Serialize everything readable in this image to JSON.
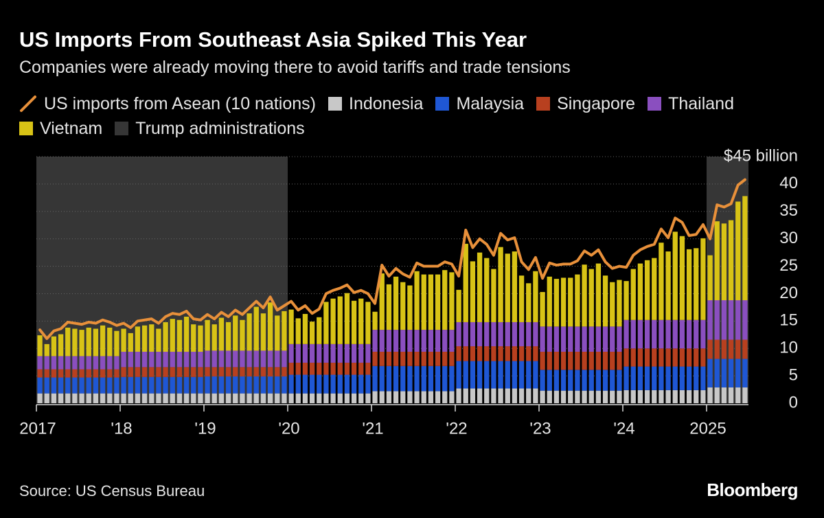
{
  "chart_data": {
    "type": "bar",
    "stacked": true,
    "title": "US Imports From Southeast Asia Spiked This Year",
    "subtitle": "Companies were already moving there to avoid tariffs and trade tensions",
    "source": "Source: US Census Bureau",
    "credit": "Bloomberg",
    "categories": [
      "2017",
      null,
      null,
      null,
      null,
      null,
      null,
      null,
      null,
      null,
      null,
      null,
      "'18",
      null,
      null,
      null,
      null,
      null,
      null,
      null,
      null,
      null,
      null,
      null,
      "'19",
      null,
      null,
      null,
      null,
      null,
      null,
      null,
      null,
      null,
      null,
      null,
      "'20",
      null,
      null,
      null,
      null,
      null,
      null,
      null,
      null,
      null,
      null,
      null,
      "'21",
      null,
      null,
      null,
      null,
      null,
      null,
      null,
      null,
      null,
      null,
      null,
      "'22",
      null,
      null,
      null,
      null,
      null,
      null,
      null,
      null,
      null,
      null,
      null,
      "'23",
      null,
      null,
      null,
      null,
      null,
      null,
      null,
      null,
      null,
      null,
      null,
      "'24",
      null,
      null,
      null,
      null,
      null,
      null,
      null,
      null,
      null,
      null,
      null,
      "2025",
      null,
      null,
      null,
      null,
      null
    ],
    "series": [
      {
        "name": "US imports from Asean (10 nations)",
        "type": "line",
        "color": "#e8903a",
        "values": [
          13.4,
          11.8,
          13.2,
          13.6,
          14.8,
          14.6,
          14.4,
          14.8,
          14.6,
          15.2,
          14.8,
          14.2,
          14.6,
          13.8,
          15.0,
          15.2,
          15.4,
          14.6,
          15.8,
          16.4,
          16.2,
          16.8,
          15.4,
          15.2,
          16.2,
          15.4,
          16.6,
          15.8,
          17.0,
          16.2,
          17.4,
          18.6,
          17.4,
          19.4,
          17.0,
          17.8,
          18.6,
          17.0,
          17.8,
          16.4,
          17.2,
          20.0,
          20.6,
          21.0,
          21.6,
          20.2,
          20.6,
          20.0,
          18.2,
          25.2,
          23.2,
          24.6,
          23.6,
          23.0,
          25.6,
          25.0,
          25.0,
          25.0,
          25.8,
          25.4,
          23.2,
          31.6,
          28.4,
          30.0,
          29.0,
          27.0,
          31.0,
          29.8,
          30.2,
          25.8,
          24.4,
          26.6,
          22.8,
          25.6,
          25.2,
          25.4,
          25.4,
          26.0,
          27.8,
          27.0,
          28.0,
          25.8,
          24.6,
          25.0,
          24.8,
          27.0,
          28.0,
          28.6,
          29.0,
          31.8,
          30.2,
          33.8,
          33.0,
          30.6,
          30.8,
          32.6,
          30.0,
          36.2,
          35.8,
          36.4,
          39.8,
          40.8
        ]
      },
      {
        "name": "Indonesia",
        "color": "#c8c8c8",
        "values": [
          1.8,
          1.8,
          1.8,
          1.8,
          1.8,
          1.8,
          1.8,
          1.8,
          1.8,
          1.8,
          1.8,
          1.8,
          1.8,
          1.8,
          1.8,
          1.8,
          1.8,
          1.8,
          1.8,
          1.8,
          1.8,
          1.8,
          1.8,
          1.8,
          1.8,
          1.8,
          1.8,
          1.8,
          1.8,
          1.8,
          1.8,
          1.8,
          1.8,
          1.8,
          1.8,
          1.8,
          1.8,
          1.8,
          1.8,
          1.8,
          1.8,
          1.8,
          1.8,
          1.8,
          1.8,
          1.8,
          1.8,
          1.8,
          2.2,
          2.2,
          2.2,
          2.2,
          2.2,
          2.2,
          2.2,
          2.2,
          2.2,
          2.2,
          2.2,
          2.2,
          2.7,
          2.7,
          2.7,
          2.7,
          2.7,
          2.7,
          2.7,
          2.7,
          2.7,
          2.7,
          2.7,
          2.7,
          2.3,
          2.3,
          2.3,
          2.3,
          2.3,
          2.3,
          2.3,
          2.3,
          2.3,
          2.3,
          2.3,
          2.3,
          2.4,
          2.4,
          2.4,
          2.4,
          2.4,
          2.4,
          2.4,
          2.4,
          2.4,
          2.4,
          2.4,
          2.4,
          2.9,
          2.9,
          2.9,
          2.9,
          2.9,
          2.9
        ]
      },
      {
        "name": "Malaysia",
        "color": "#1f57d4",
        "values": [
          2.9,
          2.9,
          2.9,
          2.9,
          2.9,
          2.9,
          2.9,
          2.9,
          2.9,
          2.9,
          2.9,
          2.9,
          3.0,
          3.0,
          3.0,
          3.0,
          3.0,
          3.0,
          3.0,
          3.0,
          3.0,
          3.0,
          3.0,
          3.0,
          3.1,
          3.1,
          3.1,
          3.1,
          3.1,
          3.1,
          3.1,
          3.1,
          3.1,
          3.1,
          3.1,
          3.1,
          3.4,
          3.4,
          3.4,
          3.4,
          3.4,
          3.4,
          3.4,
          3.4,
          3.4,
          3.4,
          3.4,
          3.4,
          4.6,
          4.6,
          4.6,
          4.6,
          4.6,
          4.6,
          4.6,
          4.6,
          4.6,
          4.6,
          4.6,
          4.6,
          5.0,
          5.0,
          5.0,
          5.0,
          5.0,
          5.0,
          5.0,
          5.0,
          5.0,
          5.0,
          5.0,
          5.0,
          3.8,
          3.8,
          3.8,
          3.8,
          3.8,
          3.8,
          3.8,
          3.8,
          3.8,
          3.8,
          3.8,
          3.8,
          4.3,
          4.3,
          4.3,
          4.3,
          4.3,
          4.3,
          4.3,
          4.3,
          4.3,
          4.3,
          4.3,
          4.3,
          5.2,
          5.2,
          5.2,
          5.2,
          5.2,
          5.2
        ]
      },
      {
        "name": "Singapore",
        "color": "#b8401f",
        "values": [
          1.5,
          1.5,
          1.5,
          1.5,
          1.5,
          1.5,
          1.5,
          1.5,
          1.5,
          1.5,
          1.5,
          1.5,
          1.8,
          1.8,
          1.8,
          1.8,
          1.8,
          1.8,
          1.8,
          1.8,
          1.8,
          1.8,
          1.8,
          1.8,
          1.7,
          1.7,
          1.7,
          1.7,
          1.7,
          1.7,
          1.7,
          1.7,
          1.7,
          1.7,
          1.7,
          1.7,
          2.2,
          2.2,
          2.2,
          2.2,
          2.2,
          2.2,
          2.2,
          2.2,
          2.2,
          2.2,
          2.2,
          2.2,
          2.6,
          2.6,
          2.6,
          2.6,
          2.6,
          2.6,
          2.6,
          2.6,
          2.6,
          2.6,
          2.6,
          2.6,
          2.7,
          2.7,
          2.7,
          2.7,
          2.7,
          2.7,
          2.7,
          2.7,
          2.7,
          2.7,
          2.7,
          2.7,
          3.3,
          3.3,
          3.3,
          3.3,
          3.3,
          3.3,
          3.3,
          3.3,
          3.3,
          3.3,
          3.3,
          3.3,
          3.3,
          3.3,
          3.3,
          3.3,
          3.3,
          3.3,
          3.3,
          3.3,
          3.3,
          3.3,
          3.3,
          3.3,
          3.5,
          3.5,
          3.5,
          3.5,
          3.5,
          3.5
        ]
      },
      {
        "name": "Thailand",
        "color": "#8a4fbf",
        "values": [
          2.4,
          2.4,
          2.4,
          2.4,
          2.4,
          2.4,
          2.4,
          2.4,
          2.4,
          2.4,
          2.4,
          2.4,
          2.8,
          2.8,
          2.8,
          2.8,
          2.8,
          2.8,
          2.8,
          2.8,
          2.8,
          2.8,
          2.8,
          2.8,
          3.0,
          3.0,
          3.0,
          3.0,
          3.0,
          3.0,
          3.0,
          3.0,
          3.0,
          3.0,
          3.0,
          3.0,
          3.4,
          3.4,
          3.4,
          3.4,
          3.4,
          3.4,
          3.4,
          3.4,
          3.4,
          3.4,
          3.4,
          3.4,
          4.0,
          4.0,
          4.0,
          4.0,
          4.0,
          4.0,
          4.0,
          4.0,
          4.0,
          4.0,
          4.0,
          4.0,
          4.4,
          4.4,
          4.4,
          4.4,
          4.4,
          4.4,
          4.4,
          4.4,
          4.4,
          4.4,
          4.4,
          4.4,
          4.6,
          4.6,
          4.6,
          4.6,
          4.6,
          4.6,
          4.6,
          4.6,
          4.6,
          4.6,
          4.6,
          4.6,
          5.2,
          5.2,
          5.2,
          5.2,
          5.2,
          5.2,
          5.2,
          5.2,
          5.2,
          5.2,
          5.2,
          5.2,
          7.2,
          7.2,
          7.2,
          7.2,
          7.2,
          7.2
        ]
      },
      {
        "name": "Vietnam",
        "color": "#d8c316",
        "values": [
          3.8,
          2.2,
          3.6,
          4.0,
          5.2,
          5.0,
          4.8,
          5.2,
          5.0,
          5.6,
          5.2,
          4.6,
          4.2,
          3.4,
          4.6,
          4.8,
          5.0,
          4.2,
          5.4,
          6.0,
          5.8,
          6.4,
          5.0,
          4.8,
          5.6,
          4.8,
          6.0,
          5.2,
          6.4,
          5.6,
          6.8,
          8.0,
          6.8,
          8.8,
          6.4,
          7.2,
          6.3,
          4.7,
          5.5,
          4.1,
          4.9,
          7.7,
          8.3,
          8.7,
          9.3,
          7.9,
          8.3,
          7.7,
          3.3,
          10.3,
          8.3,
          9.7,
          8.7,
          8.1,
          10.7,
          10.1,
          10.1,
          10.1,
          10.9,
          10.5,
          5.9,
          14.3,
          11.1,
          12.7,
          11.7,
          9.7,
          13.7,
          12.5,
          12.9,
          8.5,
          7.1,
          9.3,
          6.3,
          9.1,
          8.7,
          8.9,
          8.9,
          9.5,
          11.3,
          10.5,
          11.5,
          9.3,
          8.1,
          8.5,
          7.1,
          9.3,
          10.3,
          10.9,
          11.3,
          14.1,
          12.5,
          16.1,
          15.3,
          12.9,
          13.1,
          14.9,
          8.2,
          14.4,
          14.0,
          14.6,
          18.0,
          19.0
        ]
      }
    ],
    "shading": {
      "name": "Trump administrations",
      "color": "#363636",
      "ranges": [
        [
          0,
          36
        ],
        [
          96,
          102
        ]
      ]
    },
    "ylim": [
      0,
      45
    ],
    "yticks": [
      0,
      5,
      10,
      15,
      20,
      25,
      30,
      35,
      40,
      {
        "value": 45,
        "label": "$45 billion"
      }
    ],
    "grid": true
  }
}
